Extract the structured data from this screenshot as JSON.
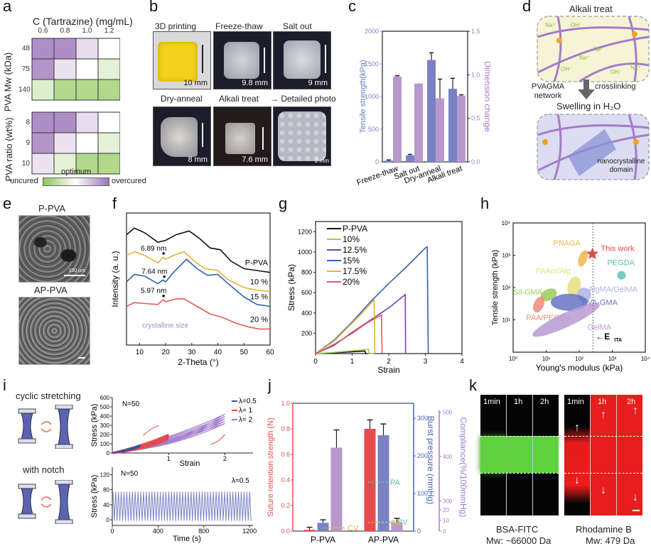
{
  "panels": {
    "a": "a",
    "b": "b",
    "c": "c",
    "d": "d",
    "e": "e",
    "f": "f",
    "g": "g",
    "h": "h",
    "i": "i",
    "j": "j",
    "k": "k"
  },
  "panel_a": {
    "x_title": "C (Tartrazine) (mg/mL)",
    "x_ticks": [
      "0.6",
      "0.8",
      "1.0",
      "1.2"
    ],
    "top_ylabel": "PVA Mw (kDa)",
    "top_rows": [
      "48",
      "75",
      "140"
    ],
    "bottom_ylabel": "PVA ratio (wt%)",
    "bottom_rows": [
      "8",
      "9",
      "10"
    ],
    "colorbar_left": "uncured",
    "colorbar_mid": "optimum",
    "colorbar_right": "overcured",
    "scale_note": "values: -1 = uncured (green), 0 = optimum (white), +1 = overcured (purple)",
    "top_grid": [
      [
        0.8,
        0.8,
        0.25,
        0.0
      ],
      [
        0.75,
        0.2,
        0.0,
        -0.25
      ],
      [
        -0.3,
        -0.7,
        -0.7,
        -0.7
      ]
    ],
    "bottom_grid": [
      [
        0.8,
        0.8,
        0.25,
        0.0
      ],
      [
        0.75,
        0.2,
        0.0,
        -0.25
      ],
      [
        0.2,
        -0.25,
        -0.7,
        -0.7
      ]
    ],
    "colors": {
      "uncured": "#8fc759",
      "optimum": "#ffffff",
      "overcured": "#9a72b8"
    }
  },
  "panel_b": {
    "photos": [
      {
        "title": "3D printing",
        "scale": "10 mm"
      },
      {
        "title": "Freeze-thaw",
        "scale": "9.8 mm"
      },
      {
        "title": "Salt out",
        "scale": "9 mm"
      },
      {
        "title": "Dry-anneal",
        "scale": "8 mm"
      },
      {
        "title": "Alkali treat",
        "scale": "7.6 mm"
      },
      {
        "title": "→ Detailed photo",
        "scale": "2 mm"
      }
    ]
  },
  "chart_data": [
    {
      "id": "c",
      "type": "bar",
      "categories": [
        "Freeze-thaw",
        "Salt out",
        "Dry-anneal",
        "Alkali treat"
      ],
      "series": [
        {
          "name": "Tensile strength",
          "axis": "left",
          "color": "#7b82c4",
          "values": [
            20,
            100,
            1560,
            1120
          ],
          "errors": [
            10,
            15,
            110,
            160
          ]
        },
        {
          "name": "Dimension change",
          "axis": "right",
          "color": "#b898cc",
          "values": [
            0.98,
            0.9,
            0.73,
            0.76
          ],
          "errors": [
            0.01,
            0,
            0.22,
            0.01
          ]
        }
      ],
      "ylabel": "Tensile strength(kPa)",
      "ylabel_right": "Dimension change",
      "ylim": [
        0,
        2000
      ],
      "ylim_right": [
        0,
        1.5
      ],
      "yticks": [
        "0",
        "500",
        "1000",
        "1500",
        "2000"
      ],
      "yticks_right": [
        "0.0",
        "0.5",
        "1.0",
        "1.5"
      ]
    },
    {
      "id": "f",
      "type": "line",
      "xlabel": "2-Theta (°)",
      "ylabel": "Intensity (a. u.)",
      "xlim": [
        5,
        60
      ],
      "xticks": [
        "10",
        "20",
        "30",
        "40",
        "50",
        "60"
      ],
      "series": [
        {
          "name": "P-PVA",
          "color": "#111111",
          "x": [
            5,
            8,
            12,
            17,
            20,
            24,
            29,
            33,
            37,
            41,
            45,
            50,
            55,
            60
          ],
          "y": [
            0.88,
            0.95,
            0.9,
            0.8,
            0.82,
            0.88,
            0.92,
            0.84,
            0.74,
            0.72,
            0.6,
            0.52,
            0.5,
            0.48
          ]
        },
        {
          "name": "10 %",
          "color": "#e6b23a",
          "x": [
            5,
            8,
            12,
            17,
            19,
            20,
            23,
            27,
            31,
            35,
            40,
            44,
            50,
            55,
            60
          ],
          "y": [
            0.66,
            0.7,
            0.66,
            0.58,
            0.64,
            0.62,
            0.66,
            0.7,
            0.6,
            0.52,
            0.5,
            0.4,
            0.32,
            0.29,
            0.28
          ]
        },
        {
          "name": "15 %",
          "color": "#2f63b0",
          "x": [
            5,
            8,
            12,
            17,
            19,
            20,
            23,
            28,
            32,
            36,
            40,
            44,
            50,
            55,
            60
          ],
          "y": [
            0.38,
            0.46,
            0.44,
            0.36,
            0.4,
            0.38,
            0.48,
            0.62,
            0.52,
            0.45,
            0.46,
            0.36,
            0.22,
            0.14,
            0.12
          ]
        },
        {
          "name": "20 %",
          "color": "#e05a5a",
          "x": [
            5,
            8,
            12,
            17,
            19,
            20,
            24,
            27,
            32,
            37,
            42,
            47,
            52,
            56,
            60
          ],
          "y": [
            0.12,
            0.16,
            0.15,
            0.14,
            0.19,
            0.17,
            0.2,
            0.2,
            0.12,
            0.04,
            0.0,
            -0.06,
            -0.1,
            -0.12,
            -0.12
          ]
        }
      ],
      "annotations": [
        {
          "text": "6.89 nm",
          "x": 19.2,
          "series": "10 %"
        },
        {
          "text": "7.64 nm",
          "x": 19.5,
          "series": "15 %"
        },
        {
          "text": "5.97 nm",
          "x": 19.2,
          "series": "20 %"
        },
        {
          "text": "crystalline size",
          "color": "#a98ac8"
        }
      ]
    },
    {
      "id": "g",
      "type": "line",
      "xlabel": "Strain",
      "ylabel": "Stress (kPa)",
      "xlim": [
        0,
        4
      ],
      "ylim": [
        0,
        1300
      ],
      "xticks": [
        "0",
        "1",
        "2",
        "3",
        "4"
      ],
      "yticks": [
        "200",
        "400",
        "600",
        "800",
        "1000",
        "1200"
      ],
      "series": [
        {
          "name": "P-PVA",
          "color": "#111111",
          "x": [
            0,
            0.5,
            1.0,
            1.35,
            1.37,
            1.4
          ],
          "y": [
            0,
            8,
            18,
            25,
            0,
            0
          ]
        },
        {
          "name": "10%",
          "color": "#9acd5a",
          "x": [
            0,
            0.5,
            1.0,
            1.45,
            1.47,
            1.6
          ],
          "y": [
            0,
            12,
            28,
            42,
            0,
            0
          ]
        },
        {
          "name": "12.5%",
          "color": "#7a3fb0",
          "x": [
            0,
            0.5,
            1.0,
            1.5,
            2.0,
            2.45,
            2.46
          ],
          "y": [
            0,
            80,
            210,
            330,
            450,
            580,
            0
          ]
        },
        {
          "name": "15%",
          "color": "#2f63b0",
          "x": [
            0,
            0.5,
            1.0,
            1.5,
            2.0,
            2.5,
            3.0,
            3.05,
            3.08
          ],
          "y": [
            0,
            130,
            310,
            510,
            690,
            860,
            1040,
            1050,
            0
          ]
        },
        {
          "name": "17.5%",
          "color": "#e6b23a",
          "x": [
            0,
            0.5,
            1.0,
            1.3,
            1.6,
            1.62
          ],
          "y": [
            0,
            120,
            300,
            410,
            530,
            0
          ]
        },
        {
          "name": "20%",
          "color": "#e05a5a",
          "x": [
            0,
            0.5,
            1.0,
            1.4,
            1.8,
            1.82
          ],
          "y": [
            0,
            90,
            200,
            300,
            380,
            0
          ]
        }
      ]
    },
    {
      "id": "h",
      "type": "scatter",
      "xlabel": "Young's modulus (kPa)",
      "ylabel": "Tensile strength (kPa)",
      "xscale": "log",
      "yscale": "log",
      "xlim": [
        1,
        10000
      ],
      "ylim": [
        1,
        10000
      ],
      "xticks": [
        "10⁰",
        "10¹",
        "10²",
        "10³",
        "10⁴"
      ],
      "yticks": [
        "10¹",
        "10²",
        "10³",
        "10⁴"
      ],
      "vline": {
        "x": 260,
        "label": "E_ITA"
      },
      "regions": [
        {
          "name": "PNAGA",
          "color": "#f0b64a",
          "x": 130,
          "y": 800
        },
        {
          "name": "This work",
          "color": "#e54b4b",
          "x": 250,
          "y": 1100,
          "marker": "star"
        },
        {
          "name": "PEGDA",
          "color": "#5fc2b0",
          "x": 1900,
          "y": 240
        },
        {
          "name": "PAAm/Alg",
          "color": "#e3e07a",
          "x": 70,
          "y": 110
        },
        {
          "name": "Sil-GMA",
          "color": "#9acd5a",
          "x": 12,
          "y": 60
        },
        {
          "name": "AlgMA/GelMA",
          "color": "#aeb3e0",
          "x": 140,
          "y": 60
        },
        {
          "name": "PVA-GMA",
          "color": "#6673c4",
          "x": 50,
          "y": 35
        },
        {
          "name": "PAA/PEGDA",
          "color": "#f08a7a",
          "x": 6,
          "y": 30
        },
        {
          "name": "GelMA",
          "color": "#b79ad4",
          "x": 40,
          "y": 10
        }
      ]
    },
    {
      "id": "i-top",
      "type": "line",
      "annotation": "N=50",
      "xlabel": "Strain",
      "ylabel": "Stress (kPa)",
      "xlim": [
        0,
        2.5
      ],
      "ylim": [
        0,
        600
      ],
      "xticks": [
        "1",
        "2"
      ],
      "yticks": [
        "0",
        "100",
        "200",
        "300",
        "400",
        "500",
        "600"
      ],
      "series": [
        {
          "name": "λ=0.5",
          "color": "#3a4ea8",
          "max_strain": 0.5,
          "max_stress": 90
        },
        {
          "name": "λ= 1",
          "color": "#e54b4b",
          "max_strain": 1,
          "max_stress": 200
        },
        {
          "name": "λ= 2",
          "color": "#a27ccc",
          "max_strain": 2,
          "max_stress": 420
        }
      ]
    },
    {
      "id": "i-bottom",
      "type": "line",
      "annotation": "N=50",
      "label": "λ=0.5",
      "xlabel": "Time (s)",
      "ylabel": "Stress (kPa)",
      "xlim": [
        0,
        1230
      ],
      "ylim": [
        -15,
        140
      ],
      "xticks": [
        "0",
        "400",
        "800",
        "1200"
      ],
      "yticks": [
        "0",
        "40",
        "80",
        "120"
      ],
      "cycles": 50,
      "min": -3,
      "max": 75,
      "color": "#7b82c4"
    },
    {
      "id": "j",
      "type": "bar",
      "categories": [
        "P-PVA",
        "AP-PVA"
      ],
      "series": [
        {
          "name": "Suture retention strength",
          "axis": "left",
          "color": "#e54b4b",
          "values": [
            0.01,
            0.8
          ],
          "errors": [
            0.02,
            0.07
          ]
        },
        {
          "name": "Burst pressure",
          "axis": "right1",
          "color": "#7b82c4",
          "values": [
            22,
            255
          ],
          "errors": [
            8,
            30
          ]
        },
        {
          "name": "Compliance",
          "axis": "right2",
          "color": "#b898cc",
          "values": [
            420,
            8
          ],
          "errors": [
            40,
            4
          ]
        }
      ],
      "ylabel": "Suture retention strength (N)",
      "ylabel_right1": "Burst pressure (mmHg)",
      "ylabel_right2": "Compliance(%/100mmHg)",
      "ylim": [
        0,
        1.0
      ],
      "yticks": [
        "0.0",
        "0.2",
        "0.4",
        "0.6",
        "0.8",
        "1.0"
      ],
      "yticks_right1": [
        "0",
        "100",
        "200",
        "300"
      ],
      "yticks_right2": [
        "0",
        "10",
        "20",
        "300",
        "400",
        "500"
      ],
      "reference_lines": [
        {
          "label": "P_A",
          "axis": "right1",
          "value": 130,
          "color": "#5fc2b0"
        },
        {
          "label": "P_V",
          "axis": "right1",
          "value": 25,
          "color": "#5fc2b0"
        },
        {
          "label": "C_V",
          "axis": "right2",
          "value": 3,
          "color": "#e6b23a"
        },
        {
          "label": "C_A",
          "axis": "right2",
          "value": 8,
          "color": "#e6b23a"
        }
      ]
    }
  ],
  "panel_d": {
    "top_title": "Alkali treat",
    "bottom_title": "Swelling in H₂O",
    "label_network": "PVAGMA network",
    "label_crosslink": "crosslinking",
    "label_domain": "nanocrystalline domain",
    "ions": [
      "Na⁺",
      "OH⁻",
      "Na⁺",
      "Na⁺",
      "OH⁻",
      "OH⁻",
      "Na⁺"
    ]
  },
  "panel_e": {
    "top_label": "P-PVA",
    "bottom_label": "AP-PVA",
    "scale": "100 μm"
  },
  "panel_i": {
    "top_caption": "cyclic stretching",
    "bottom_caption": "with notch"
  },
  "panel_k": {
    "times": [
      "1min",
      "1h",
      "2h"
    ],
    "left_name": "BSA-FITC",
    "left_mw": "Mw: ~66000 Da",
    "right_name": "Rhodamine B",
    "right_mw": "Mw: 479 Da"
  }
}
